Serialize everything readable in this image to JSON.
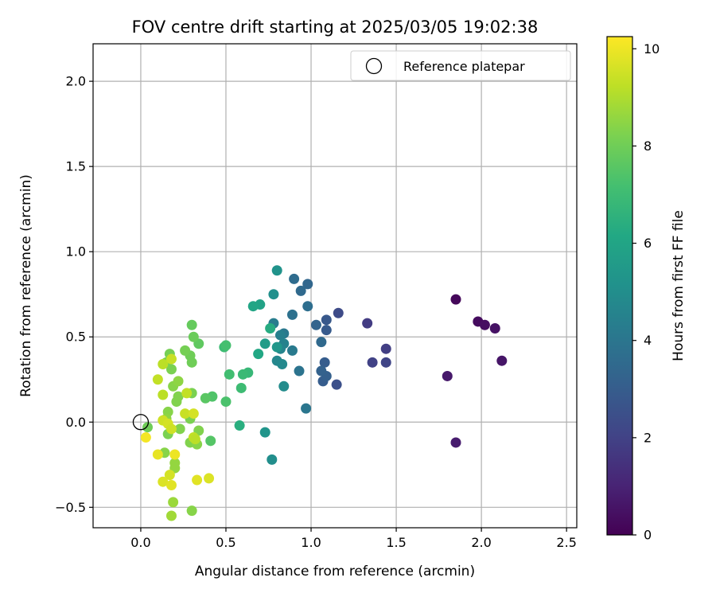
{
  "chart_data": {
    "type": "scatter",
    "title": "FOV centre drift starting at 2025/03/05 19:02:38",
    "xlabel": "Angular distance from reference (arcmin)",
    "ylabel": "Rotation from reference (arcmin)",
    "xlim": [
      -0.28,
      2.56
    ],
    "ylim": [
      -0.62,
      2.22
    ],
    "xticks": [
      0.0,
      0.5,
      1.0,
      1.5,
      2.0,
      2.5
    ],
    "xtick_labels": [
      "0.0",
      "0.5",
      "1.0",
      "1.5",
      "2.0",
      "2.5"
    ],
    "yticks": [
      -0.5,
      0.0,
      0.5,
      1.0,
      1.5,
      2.0
    ],
    "ytick_labels": [
      "−0.5",
      "0.0",
      "0.5",
      "1.0",
      "1.5",
      "2.0"
    ],
    "grid": true,
    "legend": {
      "placement": "top-right",
      "label": "Reference platepar"
    },
    "reference_point": {
      "x": 0.0,
      "y": 0.0
    },
    "colorbar": {
      "label": "Hours from first FF file",
      "colormap": "viridis",
      "range": [
        0,
        10.25
      ],
      "ticks": [
        0,
        2,
        4,
        6,
        8,
        10
      ],
      "tick_labels": [
        "0",
        "2",
        "4",
        "6",
        "8",
        "10"
      ]
    },
    "points": [
      {
        "x": 1.85,
        "y": 0.72,
        "h": 0.2
      },
      {
        "x": 1.98,
        "y": 0.59,
        "h": 0.3
      },
      {
        "x": 2.02,
        "y": 0.57,
        "h": 0.4
      },
      {
        "x": 2.08,
        "y": 0.55,
        "h": 0.5
      },
      {
        "x": 2.12,
        "y": 0.36,
        "h": 0.6
      },
      {
        "x": 1.8,
        "y": 0.27,
        "h": 0.7
      },
      {
        "x": 1.85,
        "y": -0.12,
        "h": 0.8
      },
      {
        "x": 1.33,
        "y": 0.58,
        "h": 1.8
      },
      {
        "x": 1.44,
        "y": 0.43,
        "h": 1.9
      },
      {
        "x": 1.36,
        "y": 0.35,
        "h": 2.0
      },
      {
        "x": 1.44,
        "y": 0.35,
        "h": 2.1
      },
      {
        "x": 1.16,
        "y": 0.64,
        "h": 2.3
      },
      {
        "x": 1.15,
        "y": 0.22,
        "h": 2.5
      },
      {
        "x": 1.09,
        "y": 0.6,
        "h": 2.8
      },
      {
        "x": 1.09,
        "y": 0.54,
        "h": 2.9
      },
      {
        "x": 1.08,
        "y": 0.35,
        "h": 3.0
      },
      {
        "x": 1.07,
        "y": 0.24,
        "h": 3.0
      },
      {
        "x": 1.09,
        "y": 0.27,
        "h": 3.1
      },
      {
        "x": 1.06,
        "y": 0.3,
        "h": 3.2
      },
      {
        "x": 1.03,
        "y": 0.57,
        "h": 3.3
      },
      {
        "x": 1.06,
        "y": 0.47,
        "h": 3.5
      },
      {
        "x": 0.98,
        "y": 0.81,
        "h": 3.4
      },
      {
        "x": 0.94,
        "y": 0.77,
        "h": 3.5
      },
      {
        "x": 0.9,
        "y": 0.84,
        "h": 3.6
      },
      {
        "x": 0.98,
        "y": 0.68,
        "h": 3.7
      },
      {
        "x": 0.89,
        "y": 0.63,
        "h": 3.8
      },
      {
        "x": 0.93,
        "y": 0.3,
        "h": 3.9
      },
      {
        "x": 0.97,
        "y": 0.08,
        "h": 4.0
      },
      {
        "x": 0.84,
        "y": 0.52,
        "h": 4.1
      },
      {
        "x": 0.89,
        "y": 0.42,
        "h": 4.2
      },
      {
        "x": 0.78,
        "y": 0.58,
        "h": 4.3
      },
      {
        "x": 0.82,
        "y": 0.51,
        "h": 4.4
      },
      {
        "x": 0.84,
        "y": 0.46,
        "h": 4.5
      },
      {
        "x": 0.82,
        "y": 0.43,
        "h": 4.6
      },
      {
        "x": 0.8,
        "y": 0.36,
        "h": 4.7
      },
      {
        "x": 0.83,
        "y": 0.34,
        "h": 4.8
      },
      {
        "x": 0.84,
        "y": 0.21,
        "h": 4.9
      },
      {
        "x": 0.77,
        "y": -0.22,
        "h": 5.0
      },
      {
        "x": 0.78,
        "y": 0.75,
        "h": 5.1
      },
      {
        "x": 0.8,
        "y": 0.89,
        "h": 5.2
      },
      {
        "x": 0.73,
        "y": -0.06,
        "h": 5.3
      },
      {
        "x": 0.8,
        "y": 0.44,
        "h": 5.4
      },
      {
        "x": 0.73,
        "y": 0.46,
        "h": 5.6
      },
      {
        "x": 0.7,
        "y": 0.69,
        "h": 5.9
      },
      {
        "x": 0.66,
        "y": 0.68,
        "h": 6.0
      },
      {
        "x": 0.69,
        "y": 0.4,
        "h": 6.1
      },
      {
        "x": 0.58,
        "y": -0.02,
        "h": 6.4
      },
      {
        "x": 0.76,
        "y": 0.55,
        "h": 6.3
      },
      {
        "x": 0.63,
        "y": 0.29,
        "h": 6.8
      },
      {
        "x": 0.6,
        "y": 0.28,
        "h": 6.9
      },
      {
        "x": 0.59,
        "y": 0.2,
        "h": 7.0
      },
      {
        "x": 0.52,
        "y": 0.28,
        "h": 7.1
      },
      {
        "x": 0.49,
        "y": 0.44,
        "h": 7.0
      },
      {
        "x": 0.5,
        "y": 0.45,
        "h": 7.2
      },
      {
        "x": 0.5,
        "y": 0.12,
        "h": 7.3
      },
      {
        "x": 0.42,
        "y": 0.15,
        "h": 7.4
      },
      {
        "x": 0.41,
        "y": -0.11,
        "h": 7.5
      },
      {
        "x": 0.38,
        "y": 0.14,
        "h": 7.6
      },
      {
        "x": 0.34,
        "y": 0.46,
        "h": 7.7
      },
      {
        "x": 0.3,
        "y": 0.57,
        "h": 7.8
      },
      {
        "x": 0.31,
        "y": 0.5,
        "h": 7.9
      },
      {
        "x": 0.29,
        "y": 0.39,
        "h": 8.0
      },
      {
        "x": 0.3,
        "y": 0.35,
        "h": 8.0
      },
      {
        "x": 0.26,
        "y": 0.42,
        "h": 8.1
      },
      {
        "x": 0.3,
        "y": 0.17,
        "h": 8.2
      },
      {
        "x": 0.29,
        "y": 0.02,
        "h": 8.2
      },
      {
        "x": 0.34,
        "y": -0.05,
        "h": 8.3
      },
      {
        "x": 0.29,
        "y": -0.12,
        "h": 8.3
      },
      {
        "x": 0.33,
        "y": -0.13,
        "h": 8.4
      },
      {
        "x": 0.3,
        "y": -0.52,
        "h": 8.4
      },
      {
        "x": 0.17,
        "y": 0.4,
        "h": 8.1
      },
      {
        "x": 0.18,
        "y": 0.31,
        "h": 8.2
      },
      {
        "x": 0.15,
        "y": 0.35,
        "h": 8.2
      },
      {
        "x": 0.19,
        "y": 0.21,
        "h": 8.4
      },
      {
        "x": 0.22,
        "y": 0.24,
        "h": 8.5
      },
      {
        "x": 0.21,
        "y": 0.12,
        "h": 8.3
      },
      {
        "x": 0.22,
        "y": 0.15,
        "h": 8.3
      },
      {
        "x": 0.16,
        "y": 0.06,
        "h": 8.4
      },
      {
        "x": 0.15,
        "y": 0.02,
        "h": 8.5
      },
      {
        "x": 0.23,
        "y": -0.04,
        "h": 8.3
      },
      {
        "x": 0.16,
        "y": -0.07,
        "h": 8.2
      },
      {
        "x": 0.14,
        "y": -0.18,
        "h": 8.4
      },
      {
        "x": 0.2,
        "y": -0.24,
        "h": 8.6
      },
      {
        "x": 0.2,
        "y": -0.27,
        "h": 8.6
      },
      {
        "x": 0.19,
        "y": -0.47,
        "h": 8.7
      },
      {
        "x": 0.18,
        "y": -0.55,
        "h": 8.8
      },
      {
        "x": 0.04,
        "y": -0.03,
        "h": 8.0
      },
      {
        "x": 0.13,
        "y": 0.34,
        "h": 9.2
      },
      {
        "x": 0.18,
        "y": 0.37,
        "h": 9.4
      },
      {
        "x": 0.1,
        "y": 0.25,
        "h": 9.3
      },
      {
        "x": 0.13,
        "y": 0.16,
        "h": 9.2
      },
      {
        "x": 0.27,
        "y": 0.17,
        "h": 9.3
      },
      {
        "x": 0.26,
        "y": 0.05,
        "h": 9.4
      },
      {
        "x": 0.31,
        "y": 0.05,
        "h": 9.6
      },
      {
        "x": 0.13,
        "y": 0.01,
        "h": 9.5
      },
      {
        "x": 0.16,
        "y": -0.01,
        "h": 9.6
      },
      {
        "x": 0.18,
        "y": -0.04,
        "h": 9.5
      },
      {
        "x": 0.31,
        "y": -0.09,
        "h": 9.3
      },
      {
        "x": 0.32,
        "y": -0.1,
        "h": 9.2
      },
      {
        "x": 0.17,
        "y": -0.31,
        "h": 9.6
      },
      {
        "x": 0.13,
        "y": -0.35,
        "h": 9.7
      },
      {
        "x": 0.18,
        "y": -0.37,
        "h": 9.8
      },
      {
        "x": 0.33,
        "y": -0.34,
        "h": 9.8
      },
      {
        "x": 0.4,
        "y": -0.33,
        "h": 9.7
      },
      {
        "x": 0.1,
        "y": -0.19,
        "h": 9.9
      },
      {
        "x": 0.2,
        "y": -0.19,
        "h": 10.0
      },
      {
        "x": 0.03,
        "y": -0.09,
        "h": 10.1
      }
    ]
  }
}
